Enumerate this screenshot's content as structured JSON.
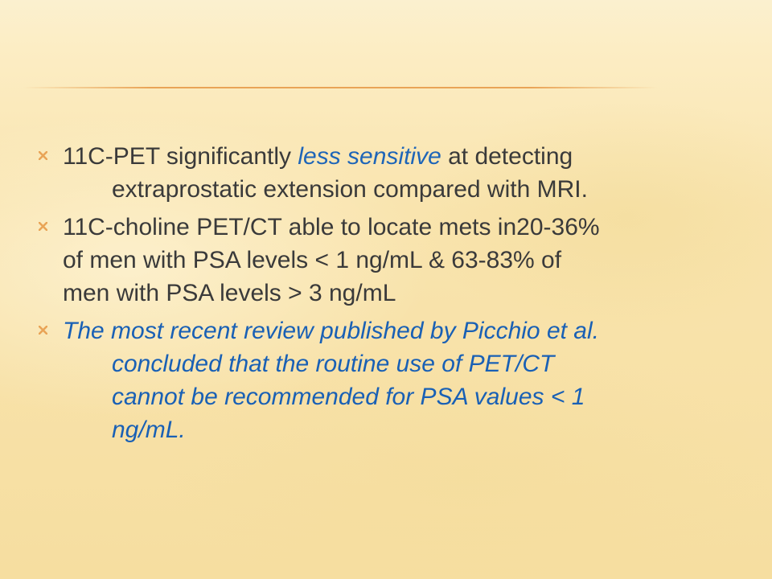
{
  "slide": {
    "accent_color": "#e9a457",
    "text_color": "#3a3a3a",
    "emphasis_color": "#1e65b8",
    "bullet_icon": "x-mark-icon",
    "bullets": [
      {
        "line1_pre": "11C-PET significantly ",
        "line1_emph": "less sensitive",
        "line1_post": " at detecting",
        "line2": "extraprostatic extension compared with MRI."
      },
      {
        "line1": "11C-choline PET/CT  able to locate mets in20-36%",
        "line2": "of men with PSA levels < 1 ng/mL &  63-83% of",
        "line3": "men with PSA levels > 3 ng/mL"
      },
      {
        "line1": "The most recent review published by Picchio et al.",
        "line2": "concluded that the routine use of  PET/CT",
        "line3": "cannot be recommended for PSA values < 1",
        "line4": "ng/mL."
      }
    ]
  }
}
